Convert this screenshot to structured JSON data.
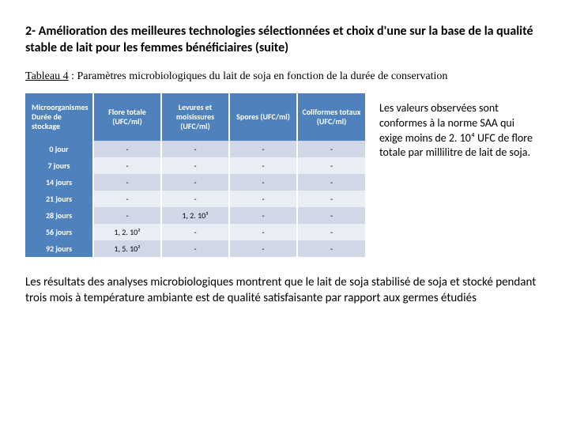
{
  "title": "2- Amélioration des meilleures technologies sélectionnées et choix d'une sur la base de la qualité stable de lait pour les femmes bénéficiaires (suite)",
  "caption_label": "Tableau 4",
  "caption_rest": " : Paramètres microbiologiques du lait de soja en fonction de la durée de conservation",
  "table": {
    "header_bg": "#4f81bd",
    "band_a": "#d0d8e8",
    "band_b": "#e9edf4",
    "columns": [
      "Microorganismes\nDurée de stockage",
      "Flore totale\n(UFC/ml)",
      "Levures et moisissures\n(UFC/ml)",
      "Spores\n(UFC/ml)",
      "Coliformes totaux\n(UFC/ml)"
    ],
    "rows": [
      {
        "label": "0 jour",
        "cells": [
          "-",
          "-",
          "-",
          "-"
        ]
      },
      {
        "label": "7 jours",
        "cells": [
          "-",
          "-",
          "-",
          "-"
        ]
      },
      {
        "label": "14 jours",
        "cells": [
          "-",
          "-",
          "-",
          "-"
        ]
      },
      {
        "label": "21 jours",
        "cells": [
          "-",
          "-",
          "-",
          "-"
        ]
      },
      {
        "label": "28 jours",
        "cells": [
          "-",
          "1, 2. 10³",
          "-",
          "-"
        ]
      },
      {
        "label": "56 jours",
        "cells": [
          "1, 2. 10²",
          "-",
          "-",
          "-"
        ]
      },
      {
        "label": "92 jours",
        "cells": [
          "1, 5. 10²",
          "-",
          "-",
          "-"
        ]
      }
    ]
  },
  "side_text": "Les valeurs observées sont conformes à la norme SAA qui exige moins de 2. 10⁴ UFC de flore totale par millilitre de lait de soja.",
  "footer_text": "Les résultats des analyses microbiologiques montrent que le lait de soja stabilisé de soja et stocké pendant trois mois à température ambiante est de qualité satisfaisante par rapport aux germes étudiés"
}
